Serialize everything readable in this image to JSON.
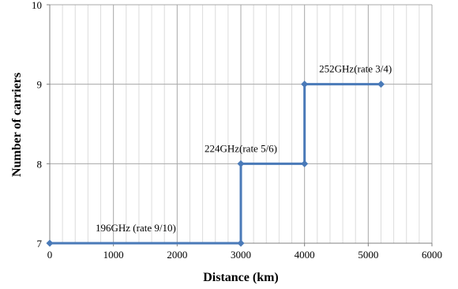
{
  "chart_data": {
    "type": "line",
    "xlabel": "Distance (km)",
    "ylabel": "Number of carriers",
    "xlim": [
      0,
      6000
    ],
    "ylim": [
      7,
      10
    ],
    "x_ticks": [
      0,
      1000,
      2000,
      3000,
      4000,
      5000,
      6000
    ],
    "x_tick_labels": [
      "0",
      "1000",
      "2000",
      "3000",
      "4000",
      "5000",
      "6000"
    ],
    "y_ticks": [
      7,
      8,
      9,
      10
    ],
    "y_tick_labels": [
      "7",
      "8",
      "9",
      "10"
    ],
    "grid": true,
    "series": [
      {
        "color": "#4a7ab8",
        "step": true,
        "points": [
          {
            "x": 0,
            "y": 7
          },
          {
            "x": 3000,
            "y": 7
          },
          {
            "x": 3000,
            "y": 8
          },
          {
            "x": 4000,
            "y": 8
          },
          {
            "x": 4000,
            "y": 9
          },
          {
            "x": 5200,
            "y": 9
          }
        ]
      }
    ],
    "annotations": [
      {
        "text": "196GHz (rate 9/10)",
        "x": 1350,
        "y": 7
      },
      {
        "text": "224GHz(rate 5/6)",
        "x": 3000,
        "y": 8
      },
      {
        "text": "252GHz(rate 3/4)",
        "x": 4800,
        "y": 9
      }
    ]
  }
}
